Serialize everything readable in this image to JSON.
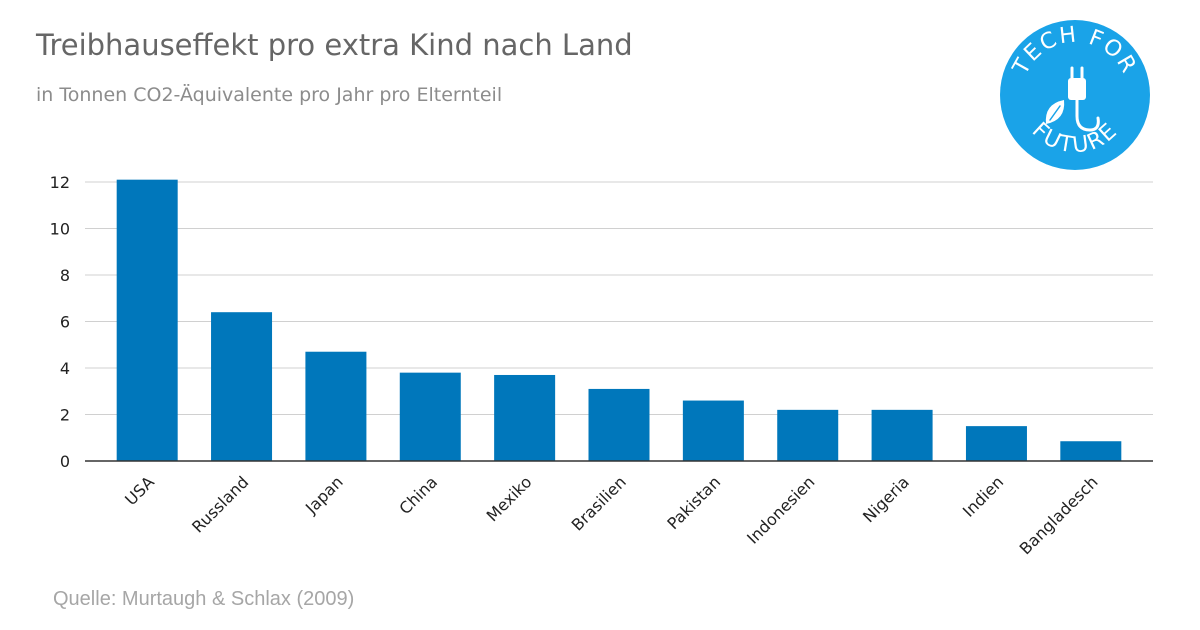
{
  "header": {
    "title": "Treibhauseffekt pro extra Kind nach Land",
    "subtitle": "in Tonnen CO2-Äquivalente pro Jahr pro Elternteil"
  },
  "footer": {
    "source": "Quelle: Murtaugh & Schlax (2009)"
  },
  "logo": {
    "top_text": "TECH FOR",
    "bottom_text": "FUTURE",
    "icon": "plug-leaf-icon",
    "color": "#1aa3e8"
  },
  "colors": {
    "bar": "#0077bb",
    "grid": "#d0d0d0",
    "axis": "#333333",
    "tick_text": "#222222"
  },
  "chart_data": {
    "type": "bar",
    "title": "Treibhauseffekt pro extra Kind nach Land",
    "subtitle": "in Tonnen CO2-Äquivalente pro Jahr pro Elternteil",
    "categories": [
      "USA",
      "Russland",
      "Japan",
      "China",
      "Mexiko",
      "Brasilien",
      "Pakistan",
      "Indonesien",
      "Nigeria",
      "Indien",
      "Bangladesch"
    ],
    "values": [
      12.1,
      6.4,
      4.7,
      3.8,
      3.7,
      3.1,
      2.6,
      2.2,
      2.2,
      1.5,
      0.85
    ],
    "ylim": [
      0,
      12
    ],
    "yticks": [
      0,
      2,
      4,
      6,
      8,
      10,
      12
    ],
    "xlabel": "",
    "ylabel": "",
    "grid": true,
    "legend": "none"
  }
}
